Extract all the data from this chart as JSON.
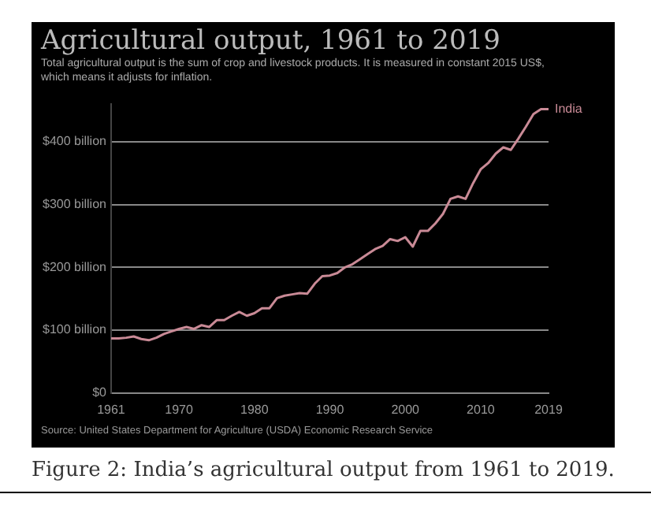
{
  "chart_data": {
    "type": "line",
    "title": "Agricultural output, 1961 to 2019",
    "subtitle": "Total agricultural output is the sum of crop and livestock products. It is measured in constant 2015 US$, which means it adjusts for inflation.",
    "annotations": [
      "Source: United States Department for Agriculture (USDA) Economic Research Service",
      "Figure 2: India’s agricultural output from 1961 to 2019."
    ],
    "x": [
      1961,
      1962,
      1963,
      1964,
      1965,
      1966,
      1967,
      1968,
      1969,
      1970,
      1971,
      1972,
      1973,
      1974,
      1975,
      1976,
      1977,
      1978,
      1979,
      1980,
      1981,
      1982,
      1983,
      1984,
      1985,
      1986,
      1987,
      1988,
      1989,
      1990,
      1991,
      1992,
      1993,
      1994,
      1995,
      1996,
      1997,
      1998,
      1999,
      2000,
      2001,
      2002,
      2003,
      2004,
      2005,
      2006,
      2007,
      2008,
      2009,
      2010,
      2011,
      2012,
      2013,
      2014,
      2015,
      2016,
      2017,
      2018,
      2019
    ],
    "series": [
      {
        "name": "India",
        "color": "#c98a96",
        "values": [
          87,
          87,
          88,
          90,
          86,
          84,
          88,
          94,
          98,
          102,
          105,
          102,
          108,
          105,
          116,
          116,
          123,
          129,
          123,
          127,
          135,
          135,
          151,
          155,
          157,
          159,
          158,
          174,
          186,
          187,
          191,
          200,
          205,
          213,
          221,
          229,
          234,
          245,
          242,
          248,
          233,
          258,
          258,
          270,
          285,
          309,
          313,
          309,
          334,
          356,
          366,
          381,
          391,
          387,
          405,
          424,
          444,
          452,
          452
        ]
      }
    ],
    "xlim": [
      1961,
      2019
    ],
    "xticks": [
      1961,
      1970,
      1980,
      1990,
      2000,
      2010,
      2019
    ],
    "ylim": [
      0,
      460
    ],
    "yticks": [
      {
        "value": 0,
        "label": "$0"
      },
      {
        "value": 100,
        "label": "$100 billion"
      },
      {
        "value": 200,
        "label": "$200 billion"
      },
      {
        "value": 300,
        "label": "$300 billion"
      },
      {
        "value": 400,
        "label": "$400 billion"
      }
    ],
    "grid": "y",
    "legend": false,
    "marker": "none",
    "line_style": "solid"
  }
}
